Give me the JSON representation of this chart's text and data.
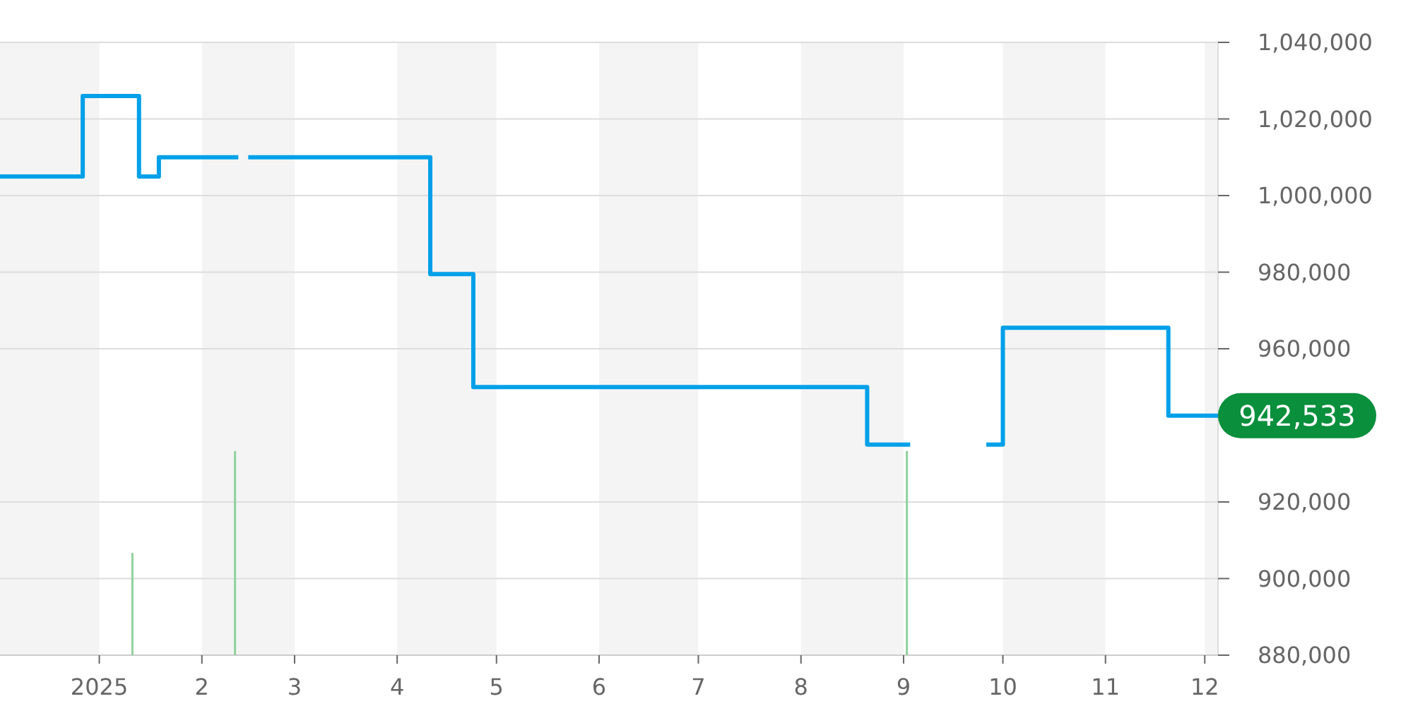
{
  "chart_data": {
    "type": "step",
    "xlim": [
      "2024-12-02",
      "2025-12-05"
    ],
    "ylim": [
      880000,
      1040000
    ],
    "xticks": [
      {
        "value": "2025-01-01",
        "label": "2025"
      },
      {
        "value": "2025-02-01",
        "label": "2"
      },
      {
        "value": "2025-03-01",
        "label": "3"
      },
      {
        "value": "2025-04-01",
        "label": "4"
      },
      {
        "value": "2025-05-01",
        "label": "5"
      },
      {
        "value": "2025-06-01",
        "label": "6"
      },
      {
        "value": "2025-07-01",
        "label": "7"
      },
      {
        "value": "2025-08-01",
        "label": "8"
      },
      {
        "value": "2025-09-01",
        "label": "9"
      },
      {
        "value": "2025-10-01",
        "label": "10"
      },
      {
        "value": "2025-11-01",
        "label": "11"
      },
      {
        "value": "2025-12-01",
        "label": "12"
      }
    ],
    "yticks": [
      {
        "value": 880000,
        "label": "880,000"
      },
      {
        "value": 900000,
        "label": "900,000"
      },
      {
        "value": 920000,
        "label": "920,000"
      },
      {
        "value": 960000,
        "label": "960,000"
      },
      {
        "value": 980000,
        "label": "980,000"
      },
      {
        "value": 1000000,
        "label": "1,000,000"
      },
      {
        "value": 1020000,
        "label": "1,020,000"
      },
      {
        "value": 1040000,
        "label": "1,040,000"
      }
    ],
    "grid": "y",
    "bands": [
      {
        "axis": "x",
        "from": "2024-12-02",
        "to": "2025-01-01",
        "color": "#f4f4f4"
      },
      {
        "axis": "x",
        "from": "2025-02-01",
        "to": "2025-03-01",
        "color": "#f4f4f4"
      },
      {
        "axis": "x",
        "from": "2025-04-01",
        "to": "2025-05-01",
        "color": "#f4f4f4"
      },
      {
        "axis": "x",
        "from": "2025-06-01",
        "to": "2025-07-01",
        "color": "#f4f4f4"
      },
      {
        "axis": "x",
        "from": "2025-08-01",
        "to": "2025-09-01",
        "color": "#f4f4f4"
      },
      {
        "axis": "x",
        "from": "2025-10-01",
        "to": "2025-11-01",
        "color": "#f4f4f4"
      },
      {
        "axis": "x",
        "from": "2025-12-01",
        "to": "2025-12-05",
        "color": "#f4f4f4"
      }
    ],
    "series": [
      {
        "type": "bar",
        "color": "#8fd19e",
        "x": [
          "2025-01-11",
          "2025-02-11",
          "2025-09-02"
        ],
        "values": [
          906700,
          933300,
          933300
        ]
      },
      {
        "color": "#00a0e9",
        "x": [
          "2024-12-02",
          "2024-12-27",
          "2025-01-13",
          "2025-01-19",
          "2025-02-12",
          "2025-02-13",
          "2025-02-15",
          "2025-04-11",
          "2025-04-24",
          "2025-08-21",
          "2025-09-03",
          "2025-09-04",
          "2025-09-26",
          "2025-10-01",
          "2025-11-20",
          "2025-12-05"
        ],
        "values": [
          1005000,
          1026000,
          1005000,
          1010000,
          1010000,
          null,
          1010000,
          979500,
          950000,
          935000,
          935000,
          null,
          935000,
          965500,
          942533,
          942533
        ]
      }
    ],
    "annotations": [
      {
        "text": "942,533",
        "x": "2025-12-05",
        "y": 942533
      }
    ]
  }
}
